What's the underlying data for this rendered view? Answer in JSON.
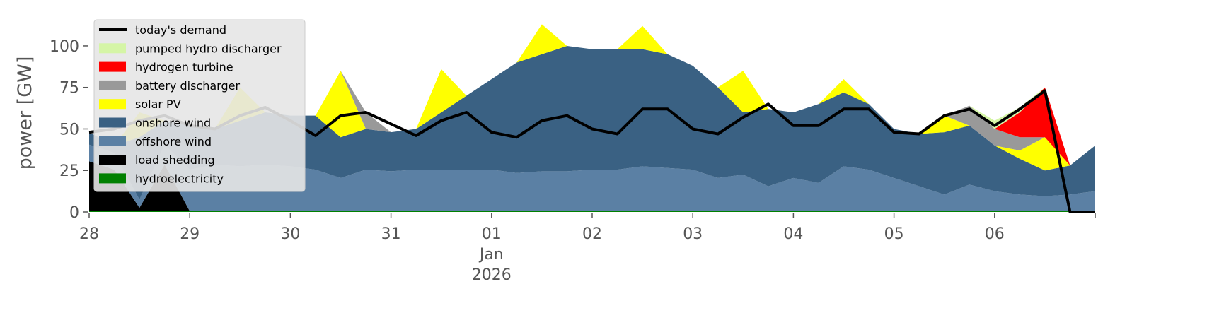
{
  "chart_data": {
    "type": "area",
    "ylabel": "power [GW]",
    "x": [
      0,
      0.25,
      0.5,
      0.75,
      1,
      1.25,
      1.5,
      1.75,
      2,
      2.25,
      2.5,
      2.75,
      3,
      3.25,
      3.5,
      3.75,
      4,
      4.25,
      4.5,
      4.75,
      5,
      5.25,
      5.5,
      5.75,
      6,
      6.25,
      6.5,
      6.75,
      7,
      7.25,
      7.5,
      7.75,
      8,
      8.25,
      8.5,
      8.75,
      9,
      9.25,
      9.5,
      9.75,
      10
    ],
    "xlim": [
      0,
      10
    ],
    "xticks": [
      {
        "value": 0,
        "label": "28"
      },
      {
        "value": 1,
        "label": "29"
      },
      {
        "value": 2,
        "label": "30"
      },
      {
        "value": 3,
        "label": "31"
      },
      {
        "value": 4,
        "label": "01\nJan\n2026"
      },
      {
        "value": 5,
        "label": "02"
      },
      {
        "value": 6,
        "label": "03"
      },
      {
        "value": 7,
        "label": "04"
      },
      {
        "value": 8,
        "label": "05"
      },
      {
        "value": 9,
        "label": "06"
      }
    ],
    "ylim": [
      0,
      117
    ],
    "yticks": [
      0,
      25,
      50,
      75,
      100
    ],
    "grid": false,
    "legend": "upper left",
    "series": [
      {
        "name": "hydroelectricity",
        "color": "#008000",
        "values": [
          0.5,
          0.5,
          0.5,
          0.5,
          0.5,
          0.5,
          0.5,
          0.5,
          0.5,
          0.5,
          0.5,
          0.5,
          0.5,
          0.5,
          0.5,
          0.5,
          0.5,
          0.5,
          0.5,
          0.5,
          0.5,
          0.5,
          0.5,
          0.5,
          0.5,
          0.5,
          0.5,
          0.5,
          0.5,
          0.5,
          0.5,
          0.5,
          0.5,
          0.5,
          0.5,
          0.5,
          0.5,
          0.5,
          0.5,
          0.5,
          0.5
        ]
      },
      {
        "name": "load shedding",
        "color": "#000000",
        "values": [
          30,
          25,
          2,
          28,
          0,
          0,
          0,
          0,
          0,
          0,
          0,
          0,
          0,
          0,
          0,
          0,
          0,
          0,
          0,
          0,
          0,
          0,
          0,
          0,
          0,
          0,
          0,
          0,
          0,
          0,
          0,
          0,
          0,
          0,
          0,
          0,
          0,
          0,
          0,
          0,
          0
        ]
      },
      {
        "name": "offshore wind",
        "color": "#5b80a4",
        "values": [
          10,
          10,
          5,
          12,
          25,
          28,
          27,
          28,
          27,
          25,
          20,
          25,
          24,
          25,
          25,
          25,
          25,
          23,
          24,
          24,
          25,
          25,
          27,
          26,
          25,
          20,
          22,
          15,
          20,
          17,
          27,
          25,
          20,
          15,
          10,
          16,
          12,
          10,
          9,
          10,
          12
        ]
      },
      {
        "name": "onshore wind",
        "color": "#3a6183",
        "values": [
          7.5,
          4.5,
          37.5,
          14.5,
          26.5,
          21.5,
          27.5,
          31.5,
          30.5,
          32.5,
          24.5,
          24.5,
          23.5,
          24.5,
          34.5,
          44.5,
          54.5,
          66.5,
          70.5,
          75.5,
          72.5,
          72.5,
          70.5,
          68.5,
          62.5,
          54.5,
          37.5,
          46.5,
          39.5,
          47.5,
          44.5,
          39.5,
          29.5,
          31.5,
          37.5,
          35.5,
          27.5,
          21.5,
          15.5,
          17.5,
          27.5
        ]
      },
      {
        "name": "solar PV",
        "color": "#ffff00",
        "values": [
          0,
          0,
          15,
          0,
          0,
          0,
          20,
          0,
          0,
          0,
          40,
          0,
          0,
          0,
          26,
          0,
          0,
          0,
          18,
          0,
          0,
          0,
          14,
          0,
          0,
          0,
          25,
          0,
          0,
          0,
          8,
          0,
          0,
          0,
          10,
          0,
          0,
          5,
          20,
          0,
          0
        ]
      },
      {
        "name": "battery discharger",
        "color": "#999999",
        "values": [
          0,
          0,
          0,
          0,
          0,
          0,
          0,
          0,
          0,
          0,
          0,
          10,
          0,
          0,
          0,
          0,
          0,
          0,
          0,
          0,
          0,
          0,
          0,
          0,
          0,
          0,
          0,
          0,
          0,
          0,
          0,
          0,
          0,
          0,
          0,
          12,
          10,
          8,
          0,
          0,
          0
        ]
      },
      {
        "name": "hydrogen turbine",
        "color": "#ff0000",
        "values": [
          0,
          0,
          0,
          0,
          0,
          0,
          0,
          0,
          0,
          0,
          0,
          0,
          0,
          0,
          0,
          0,
          0,
          0,
          0,
          0,
          0,
          0,
          0,
          0,
          0,
          0,
          0,
          0,
          0,
          0,
          0,
          0,
          0,
          0,
          0,
          0,
          0,
          15,
          30,
          0,
          0
        ]
      },
      {
        "name": "pumped hydro discharger",
        "color": "#d5f5a6",
        "values": [
          0,
          0,
          0,
          0,
          0,
          0,
          0,
          0,
          0,
          0,
          0,
          0,
          0,
          0,
          0,
          0,
          0,
          0,
          0,
          0,
          0,
          0,
          0,
          0,
          0,
          0,
          0,
          0,
          0,
          0,
          0,
          0,
          0,
          0,
          0,
          0,
          5,
          3,
          0,
          0,
          0
        ]
      }
    ],
    "demand": {
      "name": "today's demand",
      "color": "#000000",
      "values": [
        48,
        50,
        55,
        58,
        52,
        50,
        58,
        63,
        55,
        46,
        58,
        60,
        53,
        46,
        55,
        60,
        48,
        45,
        55,
        58,
        50,
        47,
        62,
        62,
        50,
        47,
        57,
        65,
        52,
        52,
        62,
        62,
        48,
        47,
        58,
        62,
        52,
        62,
        73,
        0,
        0
      ]
    }
  }
}
